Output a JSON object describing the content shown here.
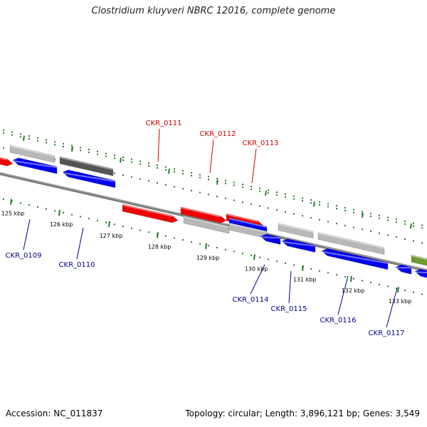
{
  "title": "Clostridium kluyveri NBRC 12016, complete genome",
  "accession": "Accession: NC_011837",
  "stats": "Topology: circular; Length: 3,896,121 bp; Genes: 3,549",
  "colors": {
    "backbone": "#7a7a7a",
    "tick": "#2a7a2a",
    "red_gene": "#ee0000",
    "blue_gene": "#0000ee",
    "grey_gene": "#b8b8b8",
    "dark_grey_gene": "#555555",
    "olive_gene": "#6e9a2e",
    "red_label": "#cc0000",
    "blue_label": "#00008b"
  },
  "kbp_ticks": [
    "125 kbp",
    "126 kbp",
    "127 kbp",
    "128 kbp",
    "129 kbp",
    "130 kbp",
    "131 kbp",
    "132 kbp",
    "133 kbp"
  ],
  "gene_labels_top": [
    "CKR_0111",
    "CKR_0112",
    "CKR_0113"
  ],
  "gene_labels_bottom": [
    "CKR_0109",
    "CKR_0110",
    "CKR_0114",
    "CKR_0115",
    "CKR_0116",
    "CKR_0117"
  ]
}
